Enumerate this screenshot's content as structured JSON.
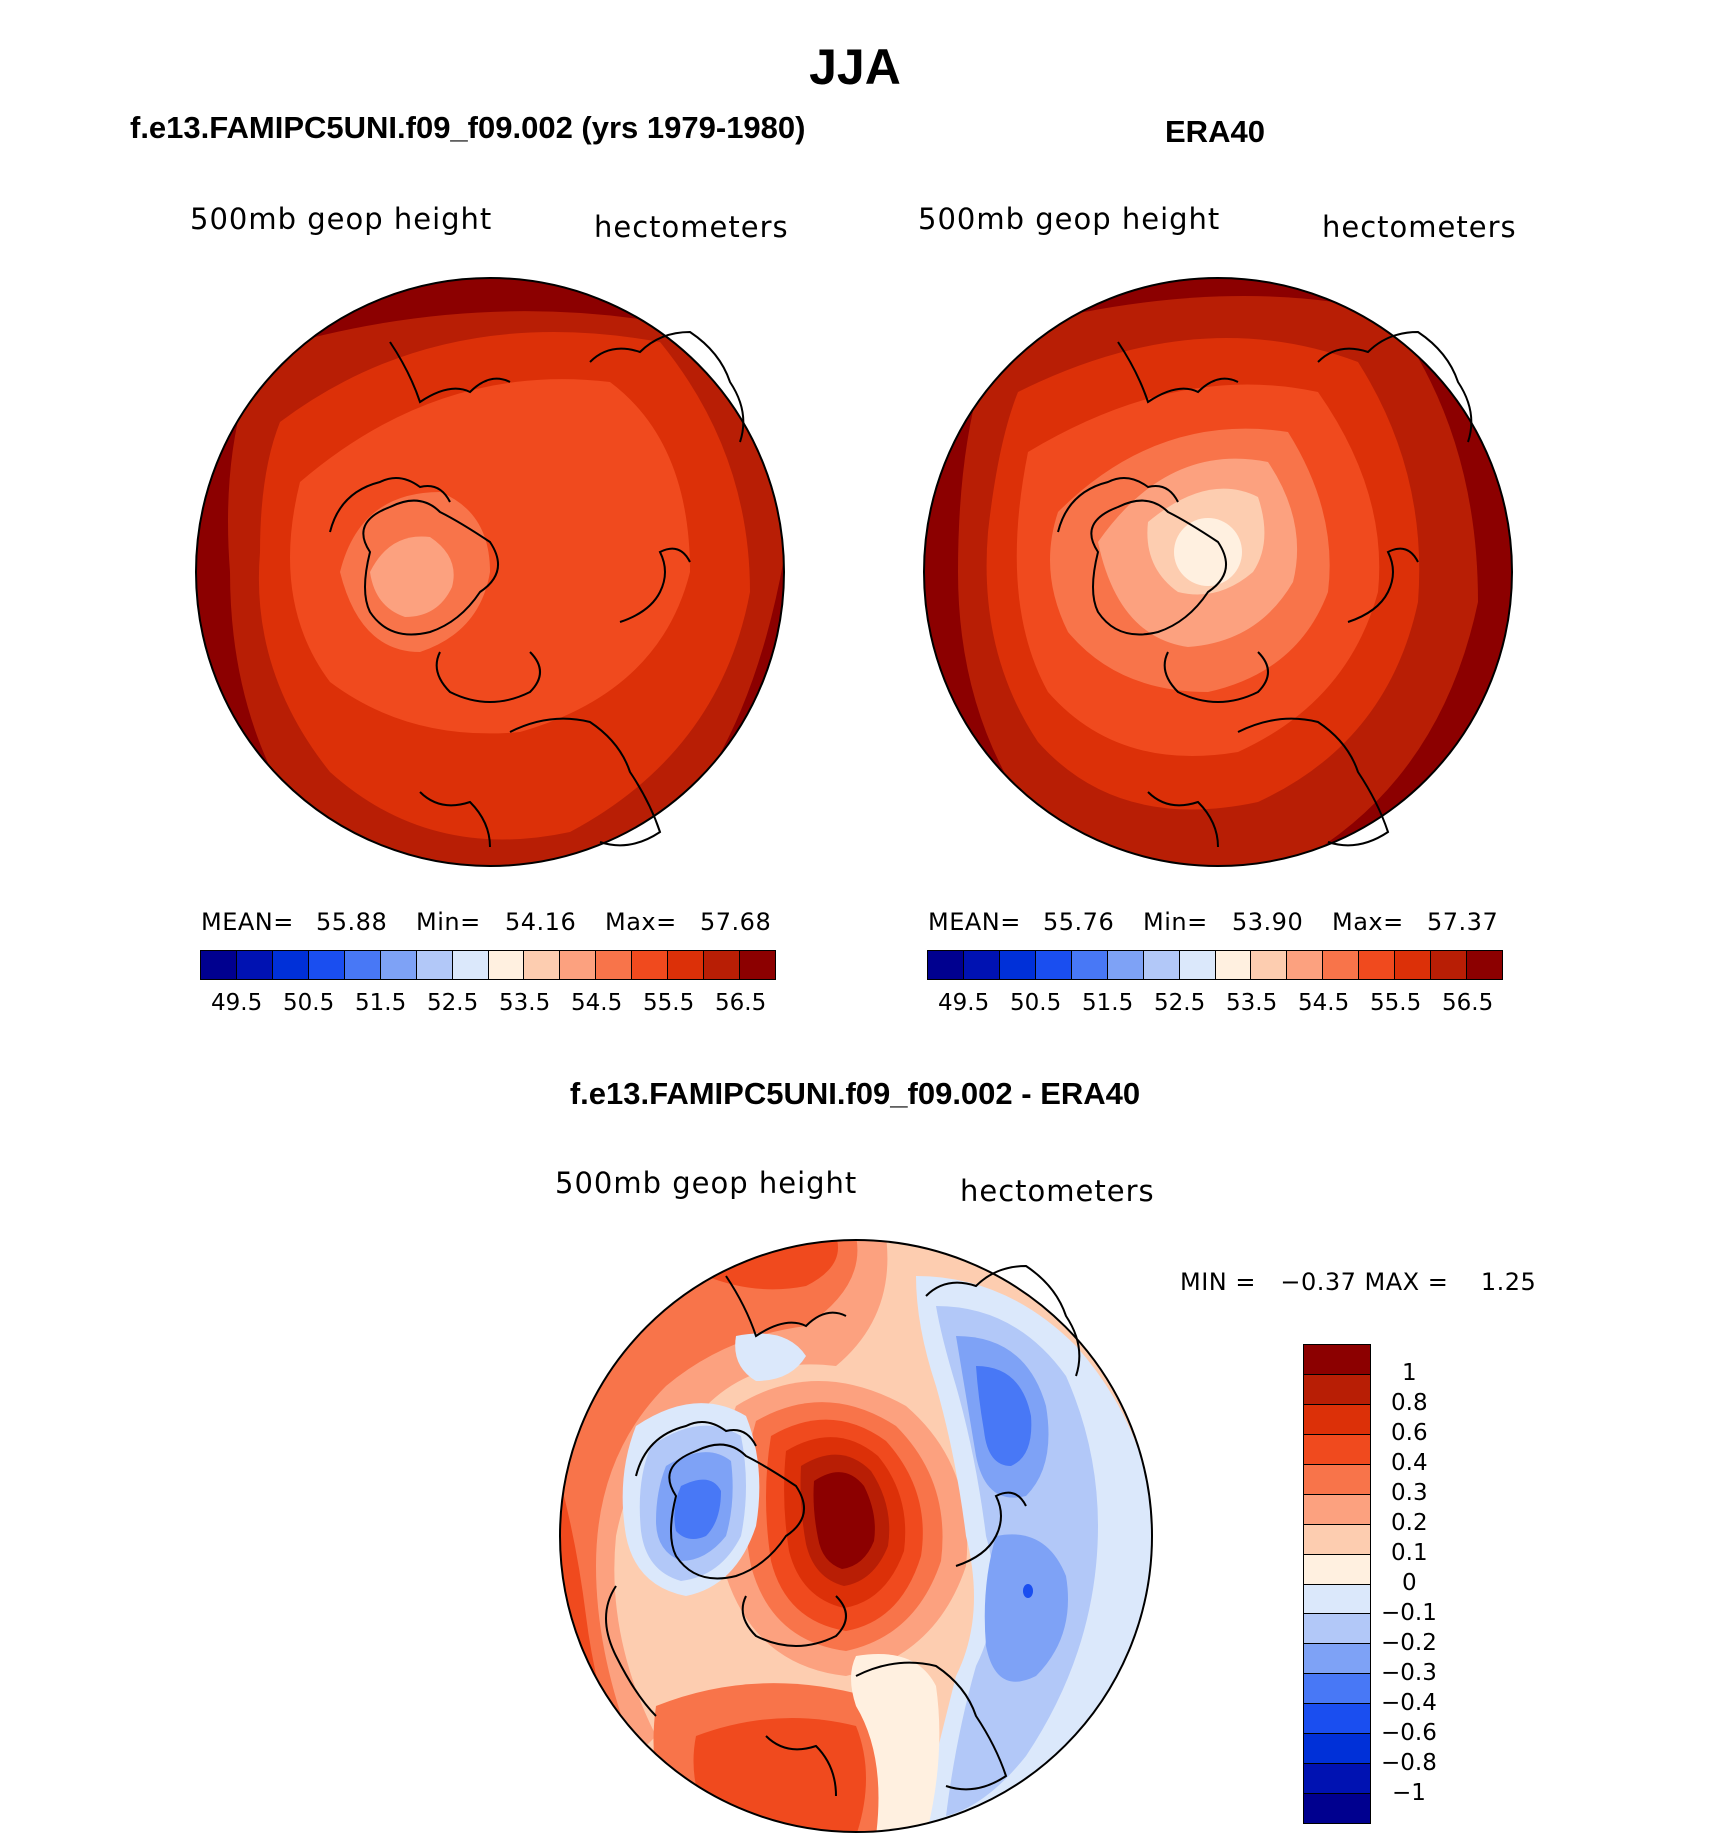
{
  "figure": {
    "season_title": "JJA"
  },
  "panel_model": {
    "title": "f.e13.FAMIPC5UNI.f09_f09.002 (yrs 1979-1980)",
    "variable": "500mb geop height",
    "units": "hectometers",
    "mean_label": "MEAN=",
    "mean_value": "55.88",
    "min_label": "Min=",
    "min_value": "54.16",
    "max_label": "Max=",
    "max_value": "57.68"
  },
  "panel_obs": {
    "title": "ERA40",
    "variable": "500mb geop height",
    "units": "hectometers",
    "mean_label": "MEAN=",
    "mean_value": "55.76",
    "min_label": "Min=",
    "min_value": "53.90",
    "max_label": "Max=",
    "max_value": "57.37"
  },
  "panel_diff": {
    "title": "f.e13.FAMIPC5UNI.f09_f09.002 - ERA40",
    "variable": "500mb geop height",
    "units": "hectometers",
    "minmax_text": "MIN =   −0.37 MAX =    1.25"
  },
  "colorbar_abs": {
    "colors": [
      "#00008f",
      "#0012b2",
      "#0030d8",
      "#1a4ef0",
      "#4878f6",
      "#7ea2f6",
      "#b2c8f8",
      "#dbe8fb",
      "#fff0e0",
      "#fdcdb0",
      "#fca17f",
      "#f8744a",
      "#f04a1e",
      "#dc3008",
      "#b81e05",
      "#8c0000"
    ],
    "tick_labels": [
      "49.5",
      "50.5",
      "51.5",
      "52.5",
      "53.5",
      "54.5",
      "55.5",
      "56.5"
    ]
  },
  "colorbar_diff": {
    "colors": [
      "#8c0000",
      "#b81e05",
      "#dc3008",
      "#f04a1e",
      "#f8744a",
      "#fca17f",
      "#fdcdb0",
      "#fff0e0",
      "#dbe8fb",
      "#b2c8f8",
      "#7ea2f6",
      "#4878f6",
      "#1a4ef0",
      "#0030d8",
      "#0012b2",
      "#00008f"
    ],
    "tick_labels": [
      "1",
      "0.8",
      "0.6",
      "0.4",
      "0.3",
      "0.2",
      "0.1",
      "0",
      "−0.1",
      "−0.2",
      "−0.3",
      "−0.4",
      "−0.6",
      "−0.8",
      "−1"
    ]
  }
}
